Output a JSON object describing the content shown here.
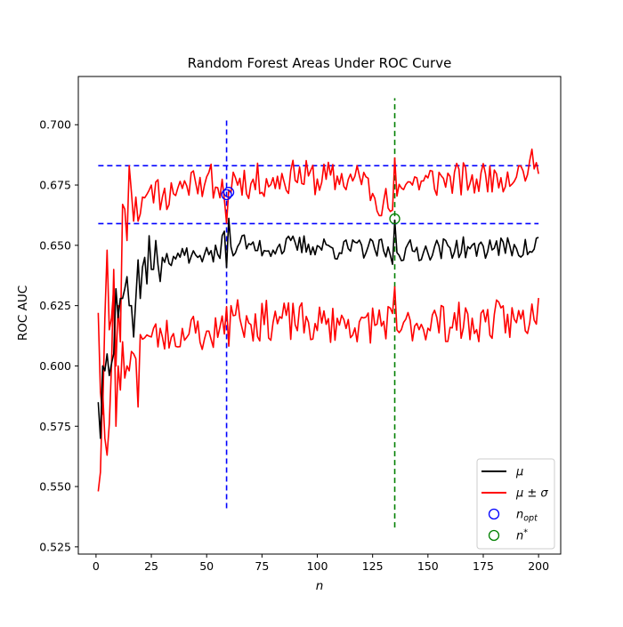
{
  "chart_data": {
    "type": "line",
    "title": "Random Forest Areas Under ROC Curve",
    "xlabel": "n",
    "ylabel": "ROC AUC",
    "xlim": [
      -8,
      210
    ],
    "ylim": [
      0.522,
      0.72
    ],
    "xticks": [
      0,
      25,
      50,
      75,
      100,
      125,
      150,
      175,
      200
    ],
    "yticks": [
      0.525,
      0.55,
      0.575,
      0.6,
      0.625,
      0.65,
      0.675,
      0.7
    ],
    "ytick_labels": [
      "0.525",
      "0.550",
      "0.575",
      "0.600",
      "0.625",
      "0.650",
      "0.675",
      "0.700"
    ],
    "grid": false,
    "legend_position": "lower-right",
    "legend": [
      {
        "label": "μ",
        "marker": "line",
        "color": "#000000"
      },
      {
        "label": "μ ± σ",
        "marker": "line",
        "color": "#ff0000"
      },
      {
        "label": "n",
        "sub": "opt",
        "marker": "circle",
        "color": "#0000ff"
      },
      {
        "label": "n",
        "sup": "*",
        "marker": "circle",
        "color": "#008000"
      }
    ],
    "mean_series": {
      "name": "μ",
      "color": "#000000",
      "anchor_x": [
        1,
        2,
        3,
        4,
        5,
        6,
        7,
        8,
        9,
        10,
        11,
        12,
        13,
        14,
        15,
        16,
        17,
        18,
        19,
        20,
        21,
        22,
        23,
        24,
        25,
        26,
        27,
        28,
        29,
        30,
        35,
        40,
        45,
        50,
        55,
        58,
        59,
        60,
        61,
        62,
        65,
        70,
        80,
        90,
        100,
        110,
        120,
        130,
        134,
        135,
        136,
        140,
        150,
        160,
        170,
        180,
        190,
        198,
        200
      ],
      "anchor_y": [
        0.585,
        0.57,
        0.6,
        0.598,
        0.605,
        0.596,
        0.601,
        0.605,
        0.632,
        0.62,
        0.628,
        0.628,
        0.632,
        0.637,
        0.625,
        0.625,
        0.612,
        0.628,
        0.644,
        0.628,
        0.641,
        0.645,
        0.634,
        0.654,
        0.64,
        0.64,
        0.652,
        0.642,
        0.635,
        0.645,
        0.646,
        0.647,
        0.645,
        0.648,
        0.645,
        0.655,
        0.64,
        0.661,
        0.648,
        0.647,
        0.652,
        0.649,
        0.649,
        0.65,
        0.65,
        0.648,
        0.649,
        0.648,
        0.643,
        0.66,
        0.647,
        0.648,
        0.648,
        0.649,
        0.649,
        0.649,
        0.649,
        0.648,
        0.654
      ],
      "noise_amp": 0.0045
    },
    "upper_series": {
      "name": "μ + σ",
      "color": "#ff0000",
      "anchor_x": [
        1,
        2,
        3,
        4,
        5,
        6,
        7,
        8,
        9,
        10,
        11,
        12,
        13,
        14,
        15,
        16,
        17,
        18,
        19,
        20,
        21,
        25,
        30,
        35,
        40,
        45,
        50,
        55,
        58,
        59,
        60,
        61,
        62,
        65,
        70,
        80,
        90,
        100,
        110,
        120,
        130,
        134,
        135,
        136,
        140,
        150,
        160,
        170,
        180,
        190,
        198,
        200
      ],
      "anchor_y": [
        0.548,
        0.556,
        0.59,
        0.57,
        0.563,
        0.576,
        0.6,
        0.64,
        0.6,
        0.625,
        0.61,
        0.667,
        0.665,
        0.652,
        0.683,
        0.672,
        0.66,
        0.67,
        0.66,
        0.663,
        0.67,
        0.675,
        0.67,
        0.672,
        0.676,
        0.677,
        0.677,
        0.676,
        0.67,
        0.658,
        0.672,
        0.672,
        0.68,
        0.678,
        0.676,
        0.678,
        0.678,
        0.678,
        0.677,
        0.677,
        0.668,
        0.665,
        0.685,
        0.672,
        0.676,
        0.677,
        0.677,
        0.677,
        0.679,
        0.68,
        0.683,
        0.681
      ],
      "noise_amp": 0.0075
    },
    "lower_series": {
      "name": "μ − σ",
      "color": "#ff0000",
      "anchor_x": [
        1,
        2,
        3,
        4,
        5,
        6,
        7,
        8,
        9,
        10,
        11,
        12,
        13,
        14,
        15,
        16,
        17,
        18,
        19,
        20,
        25,
        30,
        35,
        40,
        45,
        50,
        55,
        58,
        59,
        60,
        61,
        62,
        65,
        70,
        80,
        90,
        100,
        110,
        120,
        130,
        134,
        135,
        136,
        140,
        150,
        160,
        170,
        180,
        190,
        198,
        200
      ],
      "anchor_y": [
        0.622,
        0.589,
        0.58,
        0.62,
        0.648,
        0.615,
        0.62,
        0.632,
        0.575,
        0.6,
        0.59,
        0.61,
        0.595,
        0.6,
        0.598,
        0.606,
        0.605,
        0.603,
        0.583,
        0.613,
        0.612,
        0.612,
        0.612,
        0.613,
        0.614,
        0.614,
        0.614,
        0.613,
        0.624,
        0.61,
        0.625,
        0.62,
        0.62,
        0.618,
        0.619,
        0.618,
        0.617,
        0.617,
        0.618,
        0.618,
        0.62,
        0.632,
        0.615,
        0.618,
        0.618,
        0.618,
        0.618,
        0.619,
        0.619,
        0.62,
        0.627
      ],
      "noise_amp": 0.0085
    },
    "reference_lines": [
      {
        "orientation": "horizontal",
        "y": 0.683,
        "x_range": [
          1,
          200
        ],
        "color": "#0000ff",
        "style": "dashed"
      },
      {
        "orientation": "horizontal",
        "y": 0.659,
        "x_range": [
          1,
          200
        ],
        "color": "#0000ff",
        "style": "dashed"
      },
      {
        "orientation": "vertical",
        "x": 59,
        "y_range": [
          0.541,
          0.703
        ],
        "color": "#0000ff",
        "style": "dashed"
      },
      {
        "orientation": "vertical",
        "x": 135,
        "y_range": [
          0.533,
          0.711
        ],
        "color": "#008000",
        "style": "dashed"
      }
    ],
    "markers": [
      {
        "name": "n_opt",
        "x": 59,
        "y": 0.671,
        "color": "#0000ff"
      },
      {
        "name": "n_opt",
        "x": 60,
        "y": 0.672,
        "color": "#0000ff"
      },
      {
        "name": "n_star",
        "x": 135,
        "y": 0.661,
        "color": "#008000"
      }
    ]
  }
}
